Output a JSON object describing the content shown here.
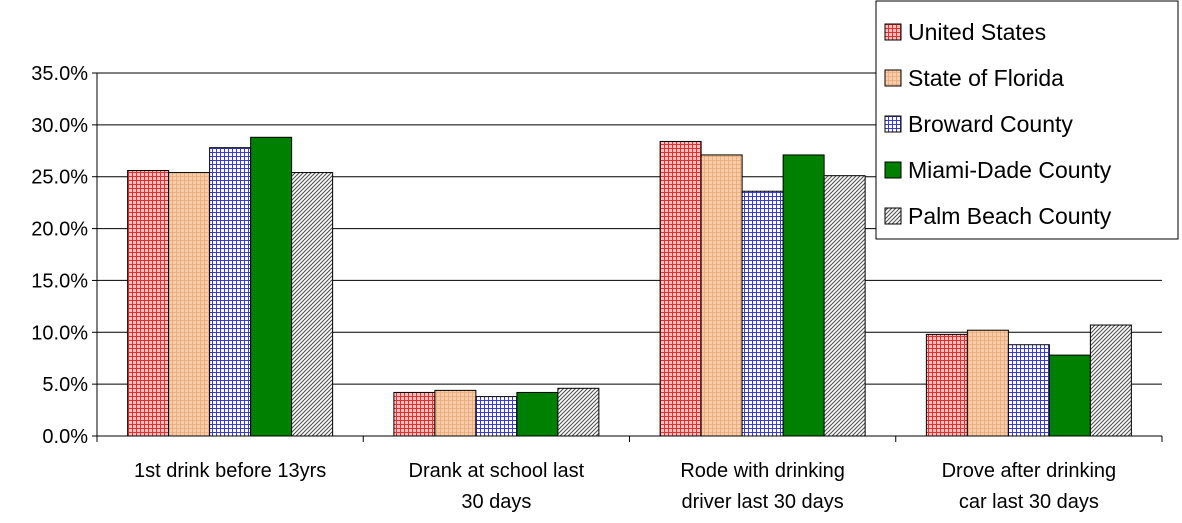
{
  "chart_data": {
    "type": "bar",
    "title": "",
    "xlabel": "",
    "ylabel": "",
    "ylim": [
      0,
      35
    ],
    "y_tick_step": 5,
    "y_tick_labels": [
      "0.0%",
      "5.0%",
      "10.0%",
      "15.0%",
      "20.0%",
      "25.0%",
      "30.0%",
      "35.0%"
    ],
    "grid": true,
    "legend_position": "top-right",
    "categories": [
      [
        "1st drink before 13yrs"
      ],
      [
        "Drank at school last",
        "30 days"
      ],
      [
        "Rode  with drinking",
        "driver last 30 days"
      ],
      [
        "Drove after drinking",
        "car last 30 days"
      ]
    ],
    "series": [
      {
        "name": "United States",
        "values": [
          25.6,
          4.2,
          28.4,
          9.8
        ],
        "color": "#e03030",
        "fill": "#f5b8b8",
        "pattern": "fine-grid"
      },
      {
        "name": "State of Florida",
        "values": [
          25.4,
          4.4,
          27.1,
          10.2
        ],
        "color": "#e0a070",
        "fill": "#f5c8a0",
        "pattern": "light-grid"
      },
      {
        "name": "Broward County",
        "values": [
          27.8,
          3.8,
          23.6,
          8.8
        ],
        "color": "#3030d0",
        "fill": "#ffffff",
        "pattern": "grid"
      },
      {
        "name": "Miami-Dade County",
        "values": [
          28.8,
          4.2,
          27.1,
          7.8
        ],
        "color": "#008000",
        "fill": "#008000",
        "pattern": "solid"
      },
      {
        "name": "Palm Beach County",
        "values": [
          25.4,
          4.6,
          25.1,
          10.7
        ],
        "color": "#555555",
        "fill": "#ffffff",
        "pattern": "diagonal"
      }
    ]
  }
}
